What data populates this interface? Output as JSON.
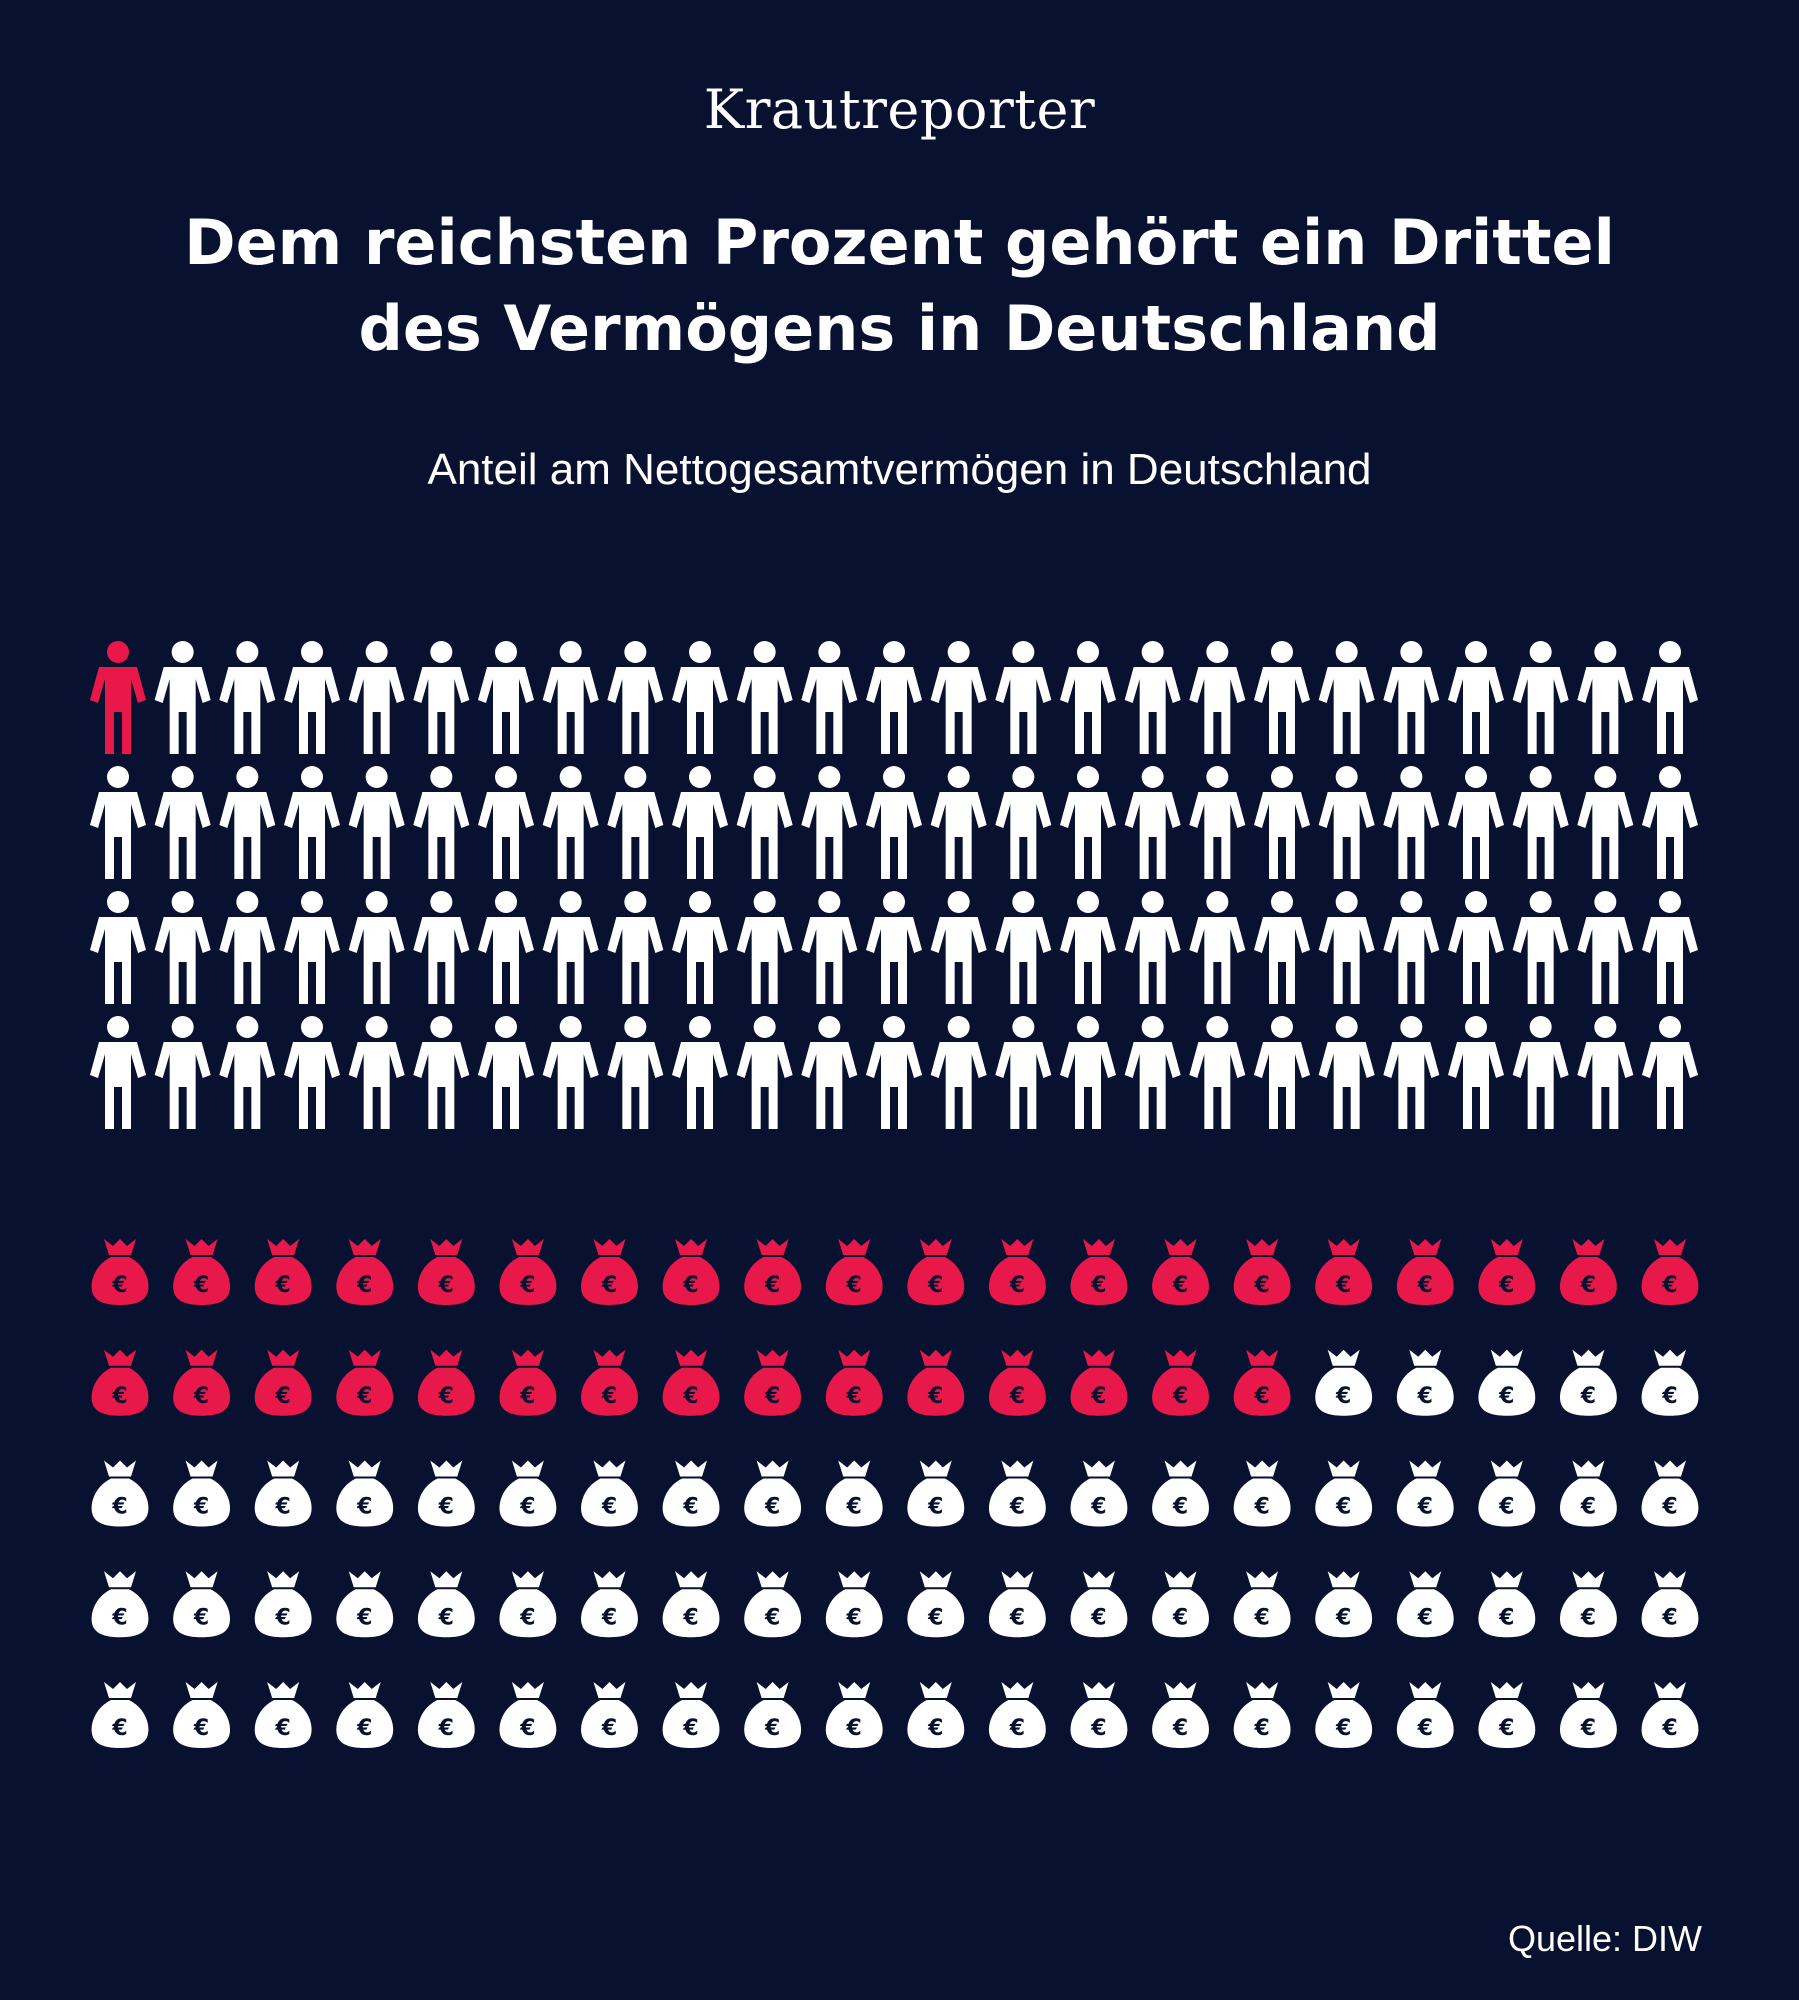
{
  "brand": "Krautreporter",
  "title_line1": "Dem reichsten Prozent gehört ein Drittel",
  "title_line2": "des Vermögens in Deutschland",
  "subtitle": "Anteil am Nettogesamtvermögen in Deutschland",
  "source": "Quelle: DIW",
  "colors": {
    "background": "#081230",
    "highlight": "#e8194a",
    "neutral": "#ffffff"
  },
  "chart_data": [
    {
      "type": "pictogram",
      "icon": "person-icon",
      "total": 100,
      "highlighted": 1,
      "rows": 4,
      "columns": 25
    },
    {
      "type": "pictogram",
      "icon": "money-bag-icon",
      "symbol": "€",
      "total": 100,
      "highlighted": 35,
      "rows": 5,
      "columns": 20
    }
  ]
}
